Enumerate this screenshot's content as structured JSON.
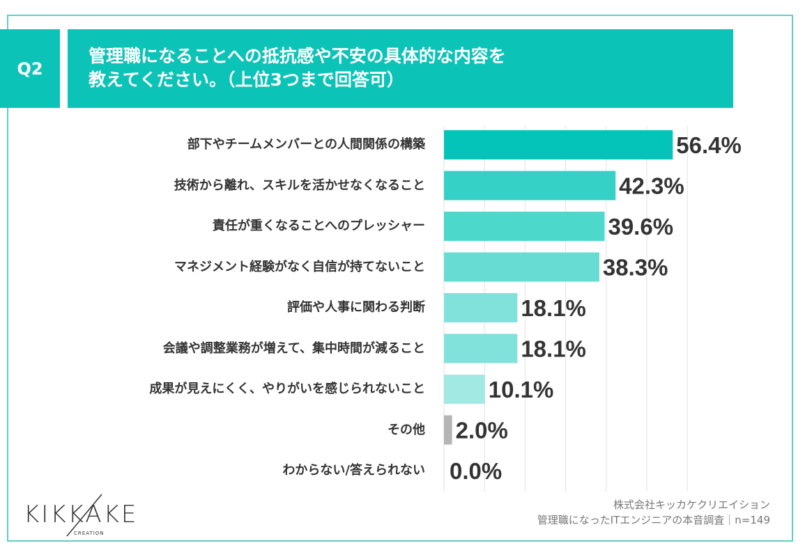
{
  "header": {
    "question_no": "Q2",
    "title_lines": [
      "管理職になることへの抵抗感や不安の具体的な内容を",
      "教えてください。（上位3つまで回答可）"
    ]
  },
  "chart_data": {
    "type": "bar",
    "orientation": "horizontal",
    "categories": [
      "部下やチームメンバーとの人間関係の構築",
      "技術から離れ、スキルを活かせなくなること",
      "責任が重くなることへのプレッシャー",
      "マネジメント経験がなく自信が持てないこと",
      "評価や人事に関わる判断",
      "会議や調整業務が増えて、集中時間が減ること",
      "成果が見えにくく、やりがいを感じられないこと",
      "その他",
      "わからない/答えられない"
    ],
    "values": [
      56.4,
      42.3,
      39.6,
      38.3,
      18.1,
      18.1,
      10.1,
      2.0,
      0.0
    ],
    "value_labels": [
      "56.4%",
      "42.3%",
      "39.6%",
      "38.3%",
      "18.1%",
      "18.1%",
      "10.1%",
      "2.0%",
      "0.0%"
    ],
    "unit": "%",
    "xlim": [
      0,
      60
    ],
    "grid": true,
    "colors": [
      "#04c4b9",
      "#36d1c6",
      "#4dd8cc",
      "#66dcd2",
      "#80e2da",
      "#80e2da",
      "#a3e9e3",
      "#b5b5b5",
      "#b5b5b5"
    ]
  },
  "footer": {
    "logo_text": "KIKKAKE",
    "logo_sub": "CREATION",
    "company": "株式会社キッカケクリエイション",
    "survey": "管理職になったITエンジニアの本音調査｜n=149"
  }
}
